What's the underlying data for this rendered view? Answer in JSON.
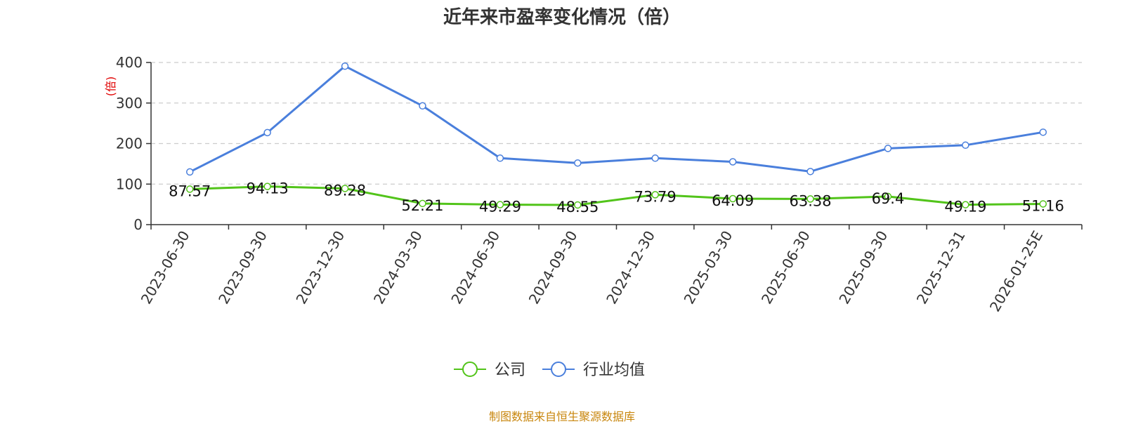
{
  "title": "近年来市盈率变化情况（倍）",
  "source": "制图数据来自恒生聚源数据库",
  "chart_data": {
    "type": "line",
    "title": "近年来市盈率变化情况（倍）",
    "ylabel": "(倍)",
    "xlabel": "",
    "ylim": [
      0,
      400
    ],
    "yticks": [
      0,
      100,
      200,
      300,
      400
    ],
    "grid": true,
    "legend_position": "bottom-center",
    "categories": [
      "2023-06-30",
      "2023-09-30",
      "2023-12-30",
      "2024-03-30",
      "2024-06-30",
      "2024-09-30",
      "2024-12-30",
      "2025-03-30",
      "2025-06-30",
      "2025-09-30",
      "2025-12-31",
      "2026-01-25E"
    ],
    "series": [
      {
        "name": "公司",
        "color": "#52c41a",
        "values": [
          87.57,
          94.13,
          89.28,
          52.21,
          49.29,
          48.55,
          73.79,
          64.09,
          63.38,
          69.4,
          49.19,
          51.16
        ],
        "labels": [
          "87.57",
          "94.13",
          "89.28",
          "52.21",
          "49.29",
          "48.55",
          "73.79",
          "64.09",
          "63.38",
          "69.4",
          "49.19",
          "51.16"
        ]
      },
      {
        "name": "行业均值",
        "color": "#4a7fdc",
        "values": [
          130,
          227,
          391,
          293,
          164,
          152,
          164,
          155,
          131,
          188,
          196,
          228
        ]
      }
    ]
  }
}
